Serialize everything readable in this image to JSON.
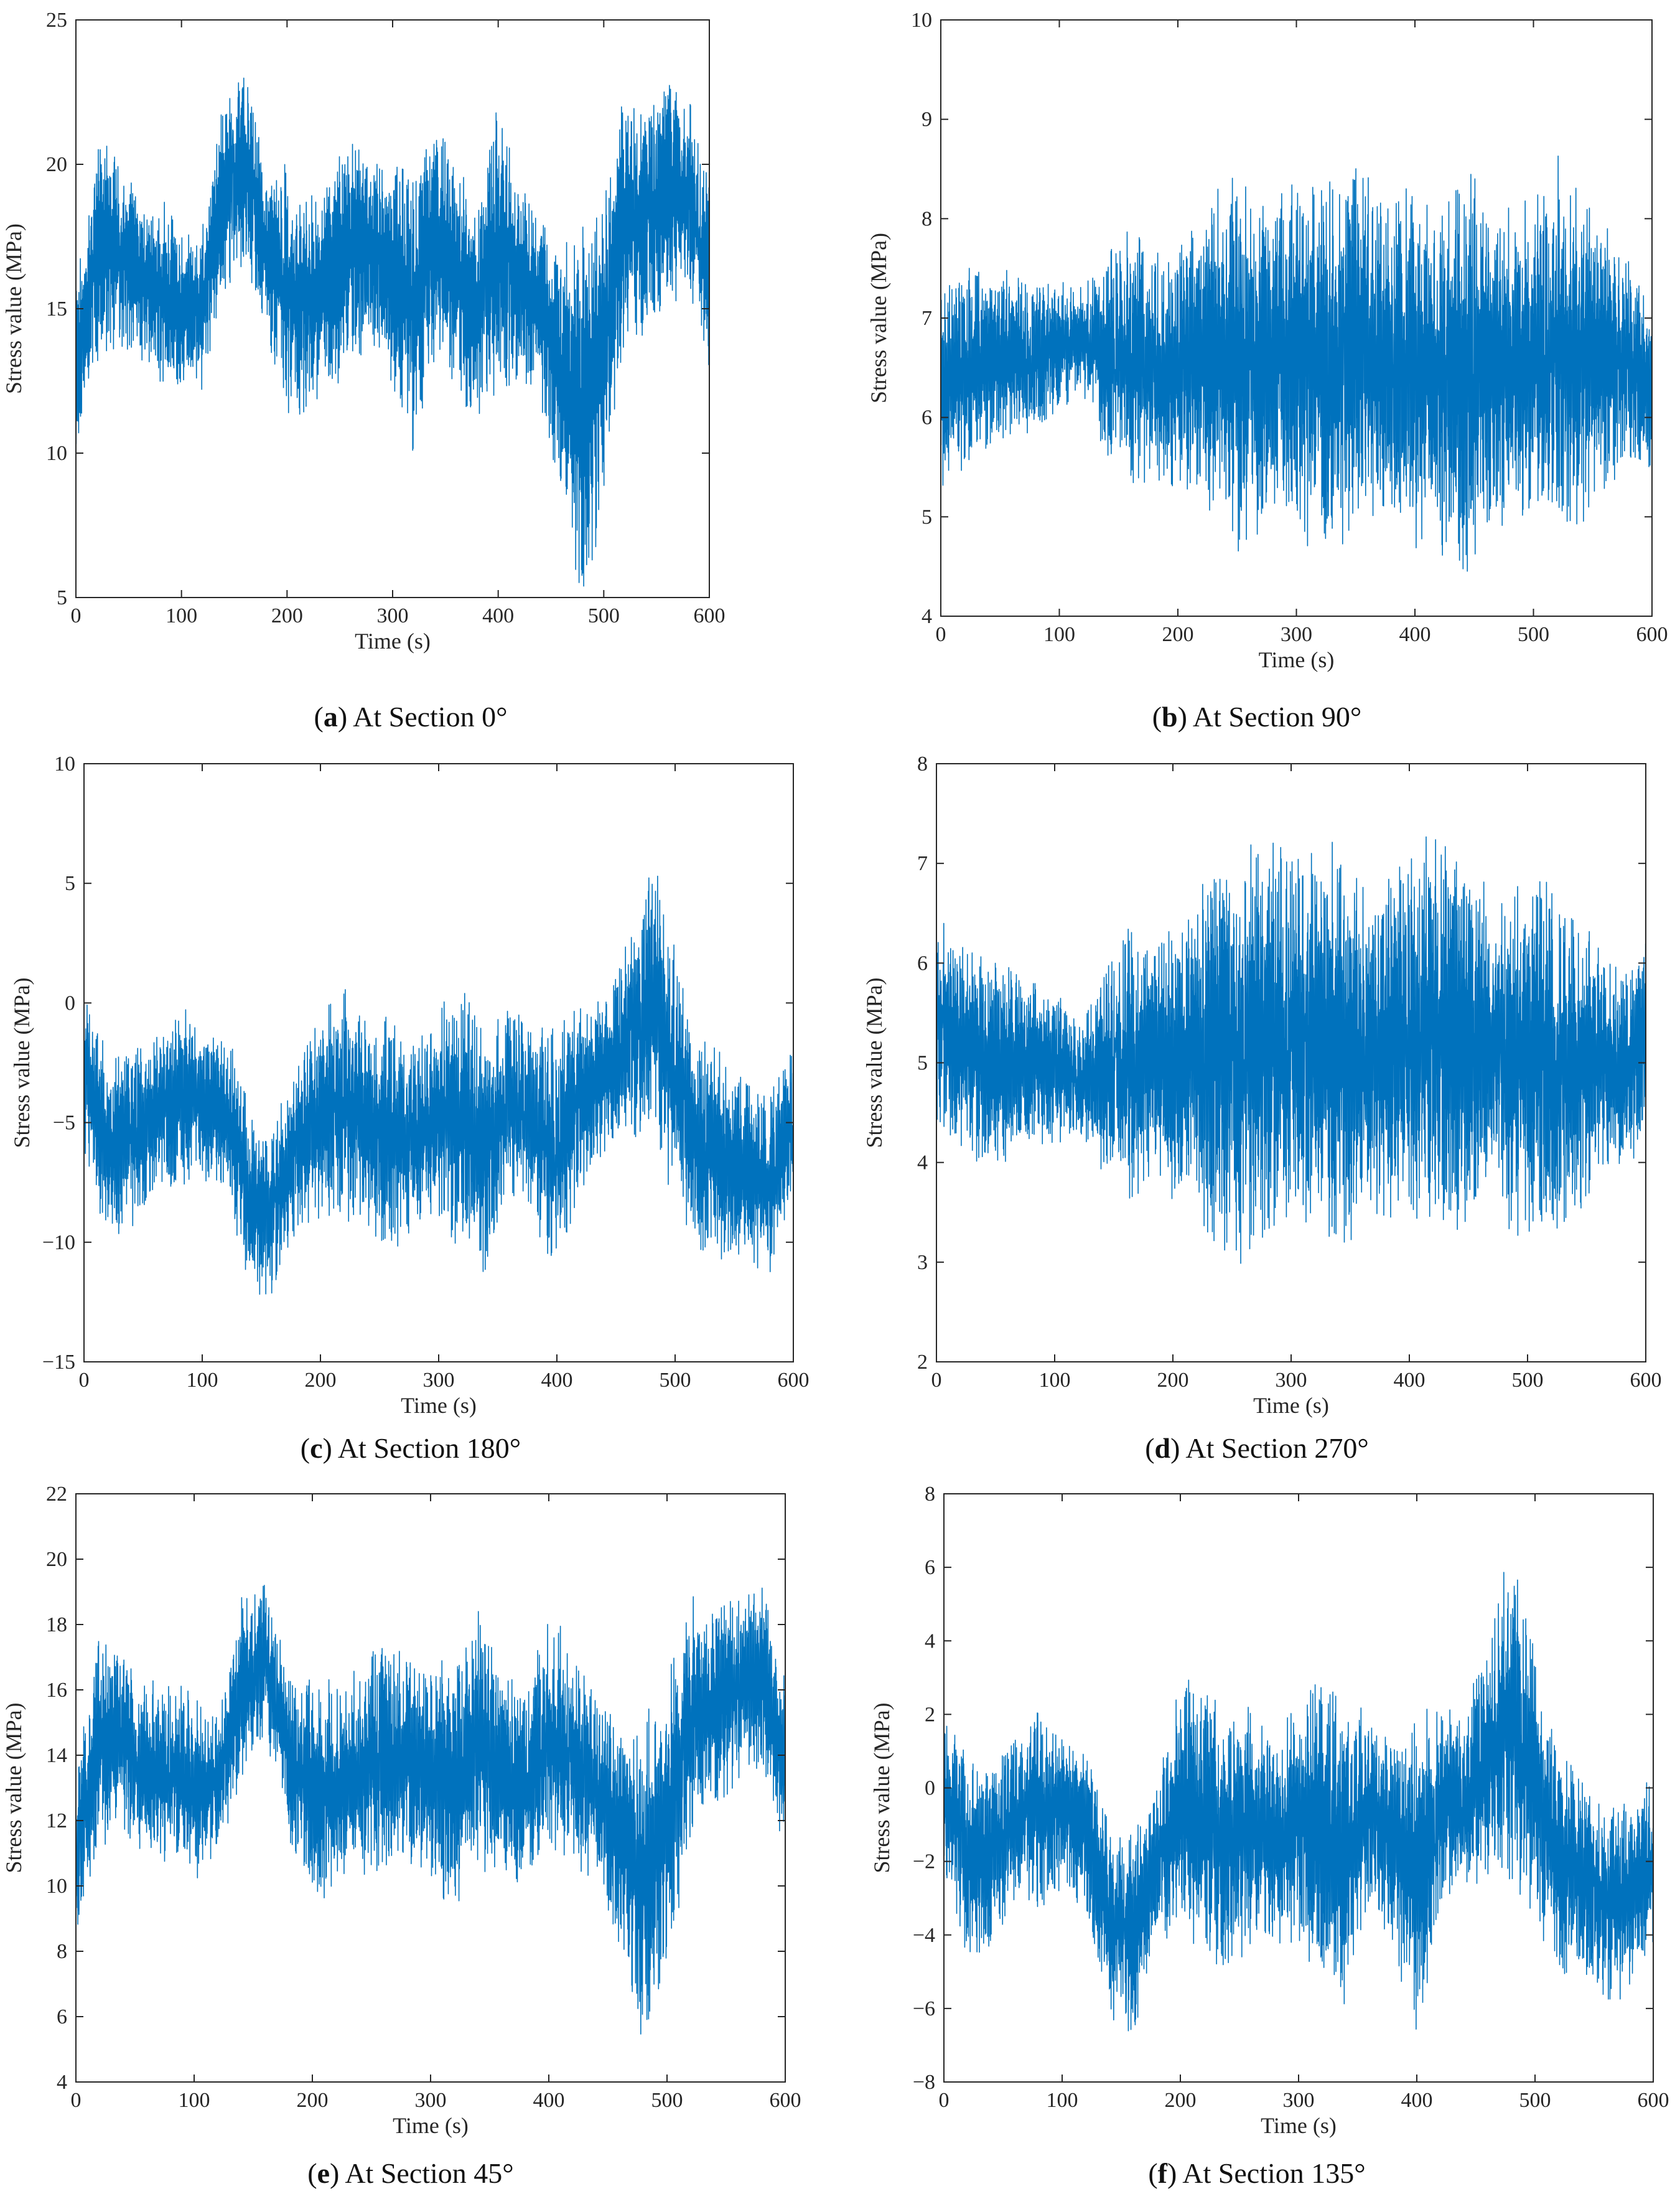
{
  "colors": {
    "series": "#0072BD",
    "axis": "#262626"
  },
  "chart_data": [
    {
      "id": "a",
      "type": "line",
      "caption_letter": "a",
      "caption_text": "At Section 0°",
      "xlabel": "Time (s)",
      "ylabel": "Stress value (MPa)",
      "xlim": [
        0,
        600
      ],
      "ylim": [
        5,
        25
      ],
      "xticks": [
        0,
        100,
        200,
        300,
        400,
        500,
        600
      ],
      "yticks": [
        5,
        10,
        15,
        20,
        25
      ],
      "envelope": {
        "x": [
          0,
          20,
          40,
          60,
          80,
          100,
          120,
          140,
          160,
          180,
          200,
          220,
          240,
          260,
          280,
          300,
          320,
          340,
          360,
          380,
          400,
          420,
          440,
          460,
          480,
          500,
          520,
          540,
          560,
          580,
          600
        ],
        "mean": [
          13,
          17,
          17,
          16,
          15.5,
          15,
          15,
          19,
          20,
          17,
          15.5,
          15,
          16,
          17,
          17,
          16,
          15,
          17.5,
          16,
          15,
          17,
          16,
          15,
          13,
          11,
          14,
          18,
          18,
          19,
          19,
          16
        ],
        "amp": [
          2.5,
          3.5,
          3,
          2.5,
          3,
          2.5,
          2.5,
          3,
          3,
          2.5,
          4,
          3.5,
          3.5,
          3.5,
          3,
          3.5,
          4.5,
          4,
          3.5,
          3.5,
          4.5,
          3,
          3,
          4,
          6,
          5,
          4,
          3.5,
          3.5,
          3,
          3
        ]
      },
      "samples": 3000,
      "seed": 11
    },
    {
      "id": "b",
      "type": "line",
      "caption_letter": "b",
      "caption_text": "At Section 90°",
      "xlabel": "Time (s)",
      "ylabel": "Stress value (MPa)",
      "xlim": [
        0,
        600
      ],
      "ylim": [
        4,
        10
      ],
      "xticks": [
        0,
        100,
        200,
        300,
        400,
        500,
        600
      ],
      "yticks": [
        4,
        5,
        6,
        7,
        8,
        9,
        10
      ],
      "envelope": {
        "x": [
          0,
          20,
          40,
          60,
          80,
          100,
          120,
          140,
          160,
          180,
          200,
          220,
          240,
          260,
          280,
          300,
          320,
          340,
          360,
          380,
          400,
          420,
          440,
          460,
          480,
          500,
          520,
          540,
          560,
          580,
          600
        ],
        "mean": [
          6.3,
          6.5,
          6.6,
          6.6,
          6.6,
          6.7,
          6.8,
          6.6,
          6.6,
          6.5,
          6.5,
          6.6,
          6.6,
          6.6,
          6.6,
          6.6,
          6.5,
          6.6,
          6.7,
          6.6,
          6.5,
          6.4,
          6.4,
          6.5,
          6.5,
          6.6,
          6.7,
          6.6,
          6.6,
          6.6,
          6.3
        ],
        "amp": [
          0.9,
          0.9,
          0.8,
          0.8,
          0.7,
          0.6,
          0.5,
          0.9,
          1.2,
          1.0,
          1.1,
          1.3,
          1.7,
          1.7,
          1.5,
          1.6,
          1.7,
          1.8,
          1.6,
          1.5,
          1.6,
          1.5,
          1.9,
          1.6,
          1.4,
          1.5,
          1.7,
          1.5,
          1.2,
          0.9,
          0.8
        ]
      },
      "samples": 3000,
      "seed": 23
    },
    {
      "id": "c",
      "type": "line",
      "caption_letter": "c",
      "caption_text": "At Section 180°",
      "xlabel": "Time (s)",
      "ylabel": "Stress value (MPa)",
      "xlim": [
        0,
        600
      ],
      "ylim": [
        -15,
        10
      ],
      "xticks": [
        0,
        100,
        200,
        300,
        400,
        500,
        600
      ],
      "yticks": [
        -15,
        -10,
        -5,
        0,
        5,
        10
      ],
      "envelope": {
        "x": [
          0,
          20,
          40,
          60,
          80,
          100,
          120,
          140,
          160,
          180,
          200,
          220,
          240,
          260,
          280,
          300,
          320,
          340,
          360,
          380,
          400,
          420,
          440,
          460,
          480,
          500,
          520,
          540,
          560,
          580,
          600
        ],
        "mean": [
          -3,
          -6,
          -5.5,
          -5,
          -4,
          -4,
          -4.5,
          -8,
          -8.5,
          -6,
          -4.5,
          -4,
          -5,
          -5.5,
          -5.5,
          -4.5,
          -5,
          -6.5,
          -4,
          -5,
          -6,
          -4,
          -3,
          -1.5,
          0,
          -3,
          -6,
          -6.5,
          -7,
          -7.5,
          -5
        ],
        "amp": [
          3,
          3.5,
          3.5,
          3,
          3.5,
          3,
          3,
          3.5,
          3.5,
          3,
          4,
          4.5,
          4,
          4.5,
          3.5,
          4,
          5,
          4.5,
          3.5,
          3.5,
          5,
          3.5,
          3,
          4,
          5.5,
          5,
          4,
          4,
          3.5,
          3.5,
          3
        ]
      },
      "samples": 3000,
      "seed": 37
    },
    {
      "id": "d",
      "type": "line",
      "caption_letter": "d",
      "caption_text": "At Section 270°",
      "xlabel": "Time (s)",
      "ylabel": "Stress value (MPa)",
      "xlim": [
        0,
        600
      ],
      "ylim": [
        2,
        8
      ],
      "xticks": [
        0,
        100,
        200,
        300,
        400,
        500,
        600
      ],
      "yticks": [
        2,
        3,
        4,
        5,
        6,
        7,
        8
      ],
      "envelope": {
        "x": [
          0,
          20,
          40,
          60,
          80,
          100,
          120,
          140,
          160,
          180,
          200,
          220,
          240,
          260,
          280,
          300,
          320,
          340,
          360,
          380,
          400,
          420,
          440,
          460,
          480,
          500,
          520,
          540,
          560,
          580,
          600
        ],
        "mean": [
          5.4,
          5.2,
          5.0,
          5.0,
          5.0,
          5.0,
          4.8,
          4.9,
          5.0,
          5.0,
          5.0,
          5.1,
          5.1,
          5.1,
          5.2,
          5.2,
          5.2,
          5.2,
          5.1,
          5.1,
          5.2,
          5.3,
          5.2,
          5.1,
          5.1,
          5.0,
          5.0,
          5.0,
          5.0,
          4.9,
          5.2
        ],
        "amp": [
          1.1,
          1.0,
          0.9,
          0.9,
          0.8,
          0.7,
          0.5,
          0.9,
          1.3,
          1.0,
          1.2,
          1.4,
          1.8,
          1.9,
          1.8,
          1.7,
          1.7,
          1.8,
          1.6,
          1.6,
          1.7,
          1.9,
          1.7,
          1.6,
          1.5,
          1.7,
          1.6,
          1.4,
          1.1,
          0.9,
          0.9
        ]
      },
      "samples": 3000,
      "seed": 41
    },
    {
      "id": "e",
      "type": "line",
      "caption_letter": "e",
      "caption_text": "At Section 45°",
      "xlabel": "Time (s)",
      "ylabel": "Stress value (MPa)",
      "xlim": [
        0,
        600
      ],
      "ylim": [
        4,
        22
      ],
      "xticks": [
        0,
        100,
        200,
        300,
        400,
        500,
        600
      ],
      "yticks": [
        4,
        6,
        8,
        10,
        12,
        14,
        16,
        18,
        20,
        22
      ],
      "envelope": {
        "x": [
          0,
          20,
          40,
          60,
          80,
          100,
          120,
          140,
          160,
          180,
          200,
          220,
          240,
          260,
          280,
          300,
          320,
          340,
          360,
          380,
          400,
          420,
          440,
          460,
          480,
          500,
          520,
          540,
          560,
          580,
          600
        ],
        "mean": [
          11,
          14.5,
          14.5,
          13.5,
          13.5,
          13,
          13,
          16,
          17,
          14,
          13,
          13,
          13.5,
          14,
          14,
          13.5,
          13,
          14.5,
          13.5,
          13,
          14.5,
          14,
          13,
          11.5,
          10,
          12,
          15,
          15.5,
          16,
          16.5,
          13.5
        ],
        "amp": [
          2.5,
          3,
          2.5,
          2.5,
          2.5,
          2.5,
          2,
          2.5,
          2,
          2.5,
          3,
          3,
          3,
          3.5,
          3,
          3,
          3.5,
          3.5,
          3,
          2.5,
          3.5,
          3,
          2.5,
          3,
          4.5,
          4,
          3.5,
          3,
          2.5,
          2.5,
          2.5
        ]
      },
      "samples": 3000,
      "seed": 53
    },
    {
      "id": "f",
      "type": "line",
      "caption_letter": "f",
      "caption_text": "At Section 135°",
      "xlabel": "Time (s)",
      "ylabel": "Stress value (MPa)",
      "xlim": [
        0,
        600
      ],
      "ylim": [
        -8,
        8
      ],
      "xticks": [
        0,
        100,
        200,
        300,
        400,
        500,
        600
      ],
      "yticks": [
        -8,
        -6,
        -4,
        -2,
        0,
        2,
        4,
        6,
        8
      ],
      "envelope": {
        "x": [
          0,
          20,
          40,
          60,
          80,
          100,
          120,
          140,
          160,
          180,
          200,
          220,
          240,
          260,
          280,
          300,
          320,
          340,
          360,
          380,
          400,
          420,
          440,
          460,
          480,
          500,
          520,
          540,
          560,
          580,
          600
        ],
        "mean": [
          0,
          -2,
          -1.5,
          -1,
          -0.5,
          -0.5,
          -1,
          -3.5,
          -4,
          -2,
          -0.5,
          -1,
          -1.5,
          -1,
          -1.5,
          -1,
          -1,
          -2,
          -0.5,
          -1.5,
          -2.5,
          -0.5,
          -0.5,
          1,
          2,
          0,
          -2,
          -2.5,
          -3,
          -3,
          -2
        ],
        "amp": [
          2,
          2.5,
          2.5,
          2,
          2.5,
          2,
          2,
          2.5,
          2.5,
          2,
          3,
          3.5,
          3,
          3,
          2.5,
          3,
          4,
          3.5,
          2.5,
          2.5,
          4,
          2.5,
          2,
          3,
          4,
          3.5,
          3,
          2.5,
          2.5,
          2.5,
          2
        ]
      },
      "samples": 3000,
      "seed": 67
    }
  ]
}
